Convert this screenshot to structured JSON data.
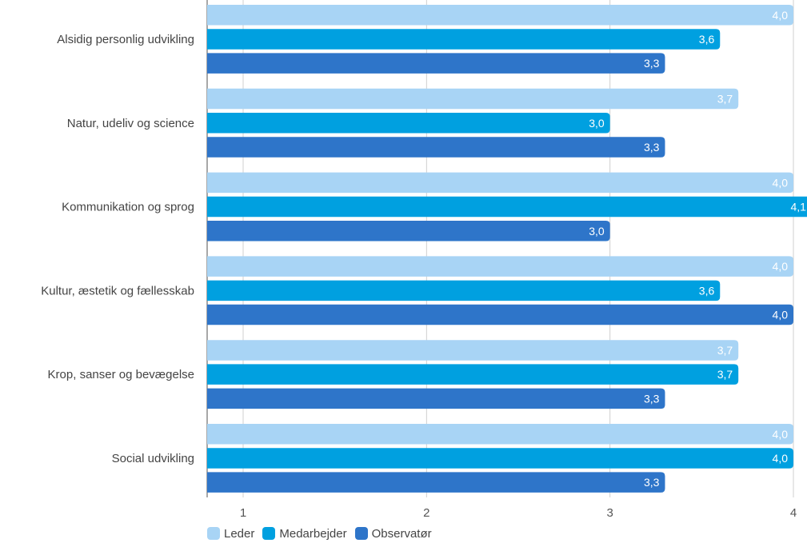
{
  "chart_data": {
    "type": "bar",
    "orientation": "horizontal",
    "categories": [
      "Alsidig personlig udvikling",
      "Natur, udeliv og science",
      "Kommunikation og sprog",
      "Kultur, æstetik og fællesskab",
      "Krop, sanser og bevægelse",
      "Social udvikling"
    ],
    "series": [
      {
        "name": "Leder",
        "color": "#a8d4f5",
        "values": [
          4.0,
          3.7,
          4.0,
          4.0,
          3.7,
          4.0
        ],
        "labels": [
          "4,0",
          "3,7",
          "4,0",
          "4,0",
          "3,7",
          "4,0"
        ]
      },
      {
        "name": "Medarbejder",
        "color": "#00a0e0",
        "values": [
          3.6,
          3.0,
          4.1,
          3.6,
          3.7,
          4.0
        ],
        "labels": [
          "3,6",
          "3,0",
          "4,1",
          "3,6",
          "3,7",
          "4,0"
        ]
      },
      {
        "name": "Observatør",
        "color": "#2e75c9",
        "values": [
          3.3,
          3.3,
          3.0,
          4.0,
          3.3,
          3.3
        ],
        "labels": [
          "3,3",
          "3,3",
          "3,0",
          "4,0",
          "3,3",
          "3,3"
        ]
      }
    ],
    "xlim": [
      0.8,
      4.0
    ],
    "xticks": [
      "1",
      "2",
      "3",
      "4"
    ],
    "grid": true,
    "legend_position": "bottom-left"
  }
}
